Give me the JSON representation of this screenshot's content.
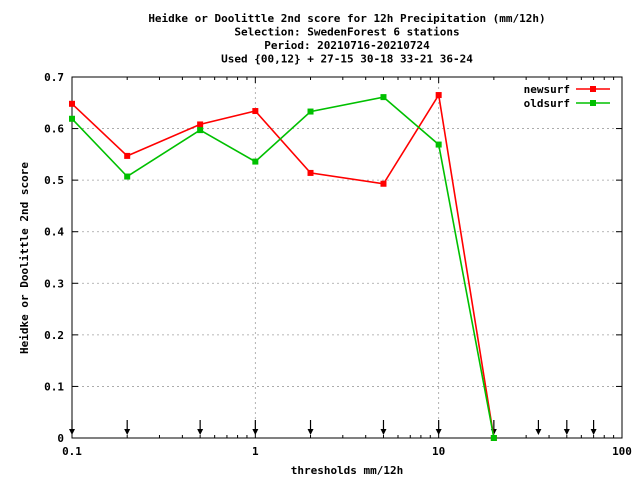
{
  "chart_data": {
    "type": "line",
    "title_lines": [
      "Heidke or Doolittle 2nd score  for 12h Precipitation (mm/12h)",
      "Selection: SwedenForest      6 stations",
      "Period: 20210716-20210724",
      "Used {00,12} + 27-15 30-18 33-21 36-24"
    ],
    "xlabel": "thresholds mm/12h",
    "ylabel": "Heidke or Doolittle 2nd score",
    "x_scale": "log",
    "xlim": [
      0.1,
      100
    ],
    "ylim": [
      0,
      0.7
    ],
    "x_ticks": [
      0.1,
      1,
      10,
      100
    ],
    "x_tick_labels": [
      "0.1",
      "1",
      "10",
      "100"
    ],
    "y_ticks": [
      0,
      0.1,
      0.2,
      0.3,
      0.4,
      0.5,
      0.6,
      0.7
    ],
    "y_tick_labels": [
      "0",
      "0.1",
      "0.2",
      "0.3",
      "0.4",
      "0.5",
      "0.6",
      "0.7"
    ],
    "grid": true,
    "legend_position": "top-right",
    "series": [
      {
        "name": "newsurf",
        "color": "#ff0000",
        "x": [
          0.1,
          0.2,
          0.5,
          1,
          2,
          5,
          10,
          20
        ],
        "values": [
          0.648,
          0.547,
          0.608,
          0.634,
          0.514,
          0.493,
          0.665,
          0.0
        ]
      },
      {
        "name": "oldsurf",
        "color": "#00c000",
        "x": [
          0.1,
          0.2,
          0.5,
          1,
          2,
          5,
          10,
          20
        ],
        "values": [
          0.619,
          0.507,
          0.597,
          0.536,
          0.633,
          0.661,
          0.569,
          0.0
        ]
      }
    ],
    "threshold_markers": [
      0.1,
      0.2,
      0.5,
      1,
      2,
      5,
      10,
      20,
      35,
      50,
      70
    ]
  }
}
